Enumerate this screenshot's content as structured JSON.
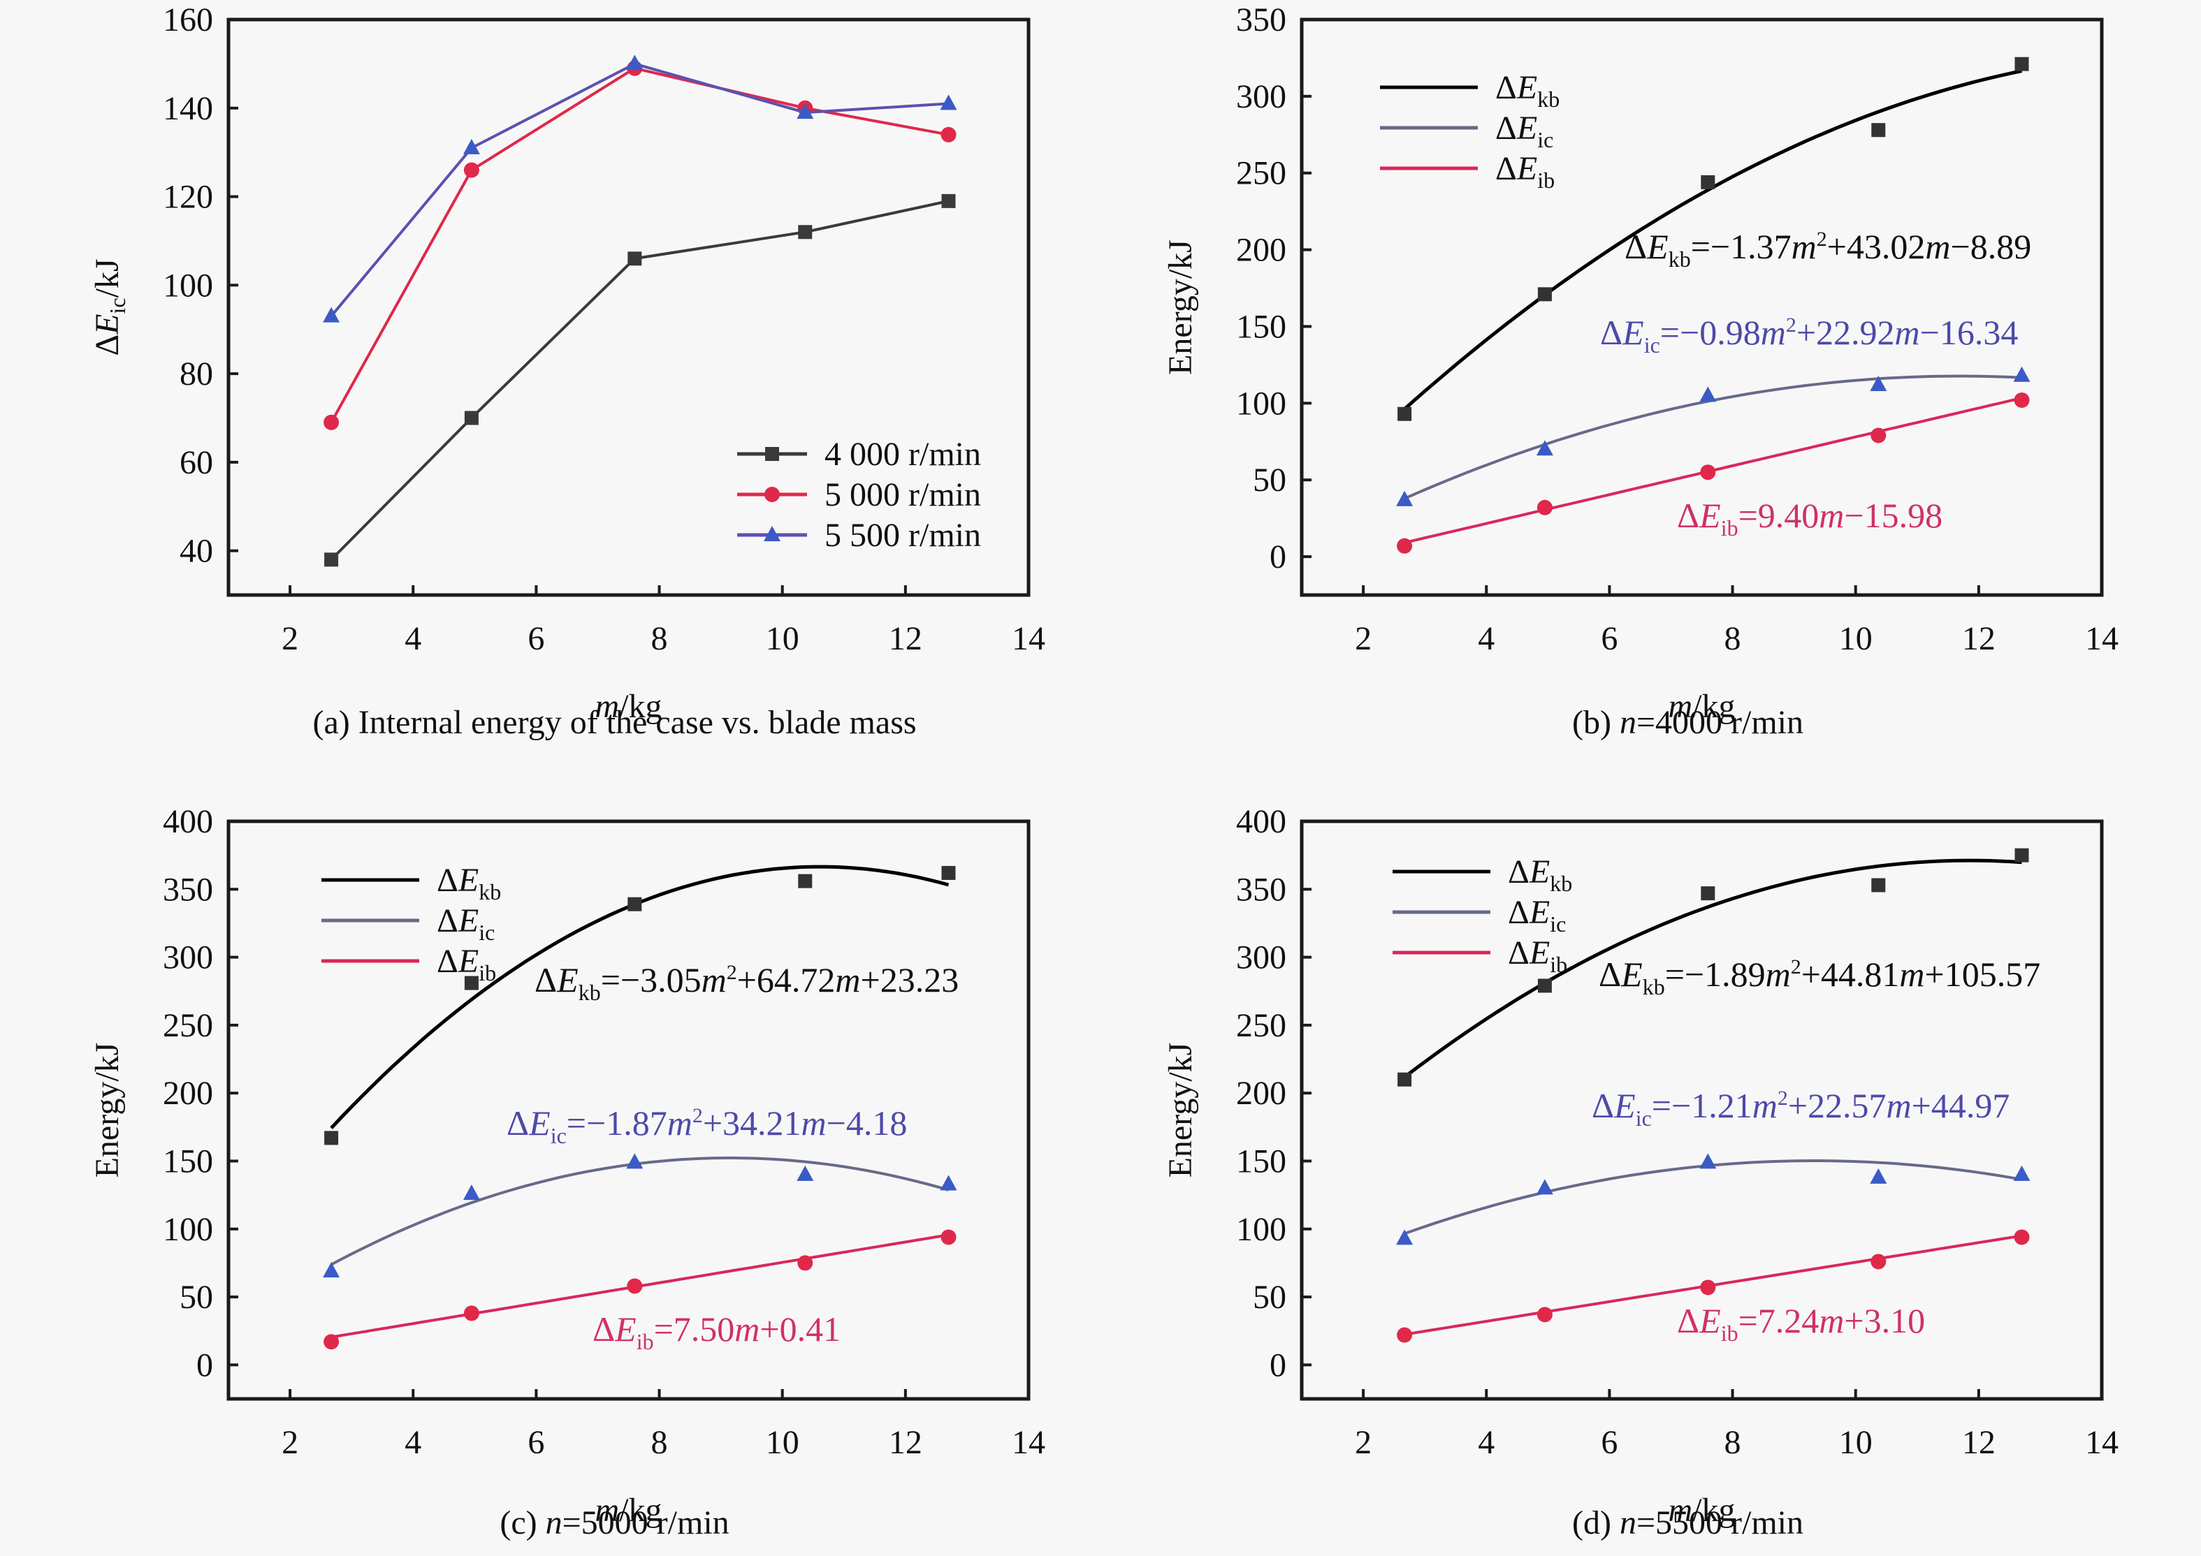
{
  "chart_data": [
    {
      "id": "a",
      "type": "line",
      "caption": "(a) Internal energy of the case vs. blade mass",
      "xlabel": "m/kg",
      "ylabel": "ΔEic/kJ",
      "xlim": [
        1,
        14
      ],
      "ylim": [
        30,
        160
      ],
      "xticks": [
        2,
        4,
        6,
        8,
        10,
        12,
        14
      ],
      "yticks": [
        40,
        60,
        80,
        100,
        120,
        140,
        160
      ],
      "legend_position": "bottom-right",
      "x": [
        2.67,
        4.95,
        7.6,
        10.37,
        12.7
      ],
      "series": [
        {
          "name": "4 000 r/min",
          "marker": "square",
          "color": "#3a3a3a",
          "values": [
            38,
            70,
            106,
            112,
            119
          ]
        },
        {
          "name": "5 000 r/min",
          "marker": "circle",
          "color": "#e0284a",
          "values": [
            69,
            126,
            149,
            140,
            134
          ]
        },
        {
          "name": "5 500 r/min",
          "marker": "triangle",
          "color": "#3a5bc7",
          "line_color": "#5a52b0",
          "values": [
            93,
            131,
            150,
            139,
            141
          ]
        }
      ]
    },
    {
      "id": "b",
      "type": "scatter",
      "caption": "(b) n=4000 r/min",
      "caption_parts": [
        "(b) ",
        "n",
        "=4000 r/min"
      ],
      "xlabel": "m/kg",
      "ylabel": "Energy/kJ",
      "xlim": [
        1,
        14
      ],
      "ylim": [
        -25,
        350
      ],
      "xticks": [
        2,
        4,
        6,
        8,
        10,
        12,
        14
      ],
      "yticks": [
        0,
        50,
        100,
        150,
        200,
        250,
        300,
        350
      ],
      "legend_position": "top-left",
      "x": [
        2.67,
        4.95,
        7.6,
        10.37,
        12.7
      ],
      "series": [
        {
          "name": "ΔEkb",
          "sub": "kb",
          "marker": "square",
          "color": "#333333",
          "line_color": "#000000",
          "values": [
            93,
            171,
            244,
            278,
            321
          ],
          "fit": [
            -1.37,
            43.02,
            -8.89
          ],
          "equation": [
            "=−1.37",
            "m",
            "2",
            "+43.02",
            "m",
            "−8.89"
          ],
          "eq_color": "#111111"
        },
        {
          "name": "ΔEic",
          "sub": "ic",
          "marker": "triangle",
          "color": "#3a5bc7",
          "line_color": "#666a8a",
          "values": [
            37,
            70,
            105,
            112,
            118
          ],
          "fit": [
            -0.98,
            22.92,
            -16.34
          ],
          "equation": [
            "=−0.98",
            "m",
            "2",
            "+22.92",
            "m",
            "−16.34"
          ],
          "eq_color": "#4d4aa8"
        },
        {
          "name": "ΔEib",
          "sub": "ib",
          "marker": "circle",
          "color": "#e0284a",
          "line_color": "#d8285a",
          "values": [
            7,
            32,
            55,
            79,
            102
          ],
          "fit": [
            0,
            9.4,
            -15.98
          ],
          "equation": [
            "=9.40",
            "m",
            "",
            "−15.98",
            "",
            ""
          ],
          "eq_color": "#d0306a"
        }
      ]
    },
    {
      "id": "c",
      "type": "scatter",
      "caption": "(c) n=5000 r/min",
      "caption_parts": [
        "(c) ",
        "n",
        "=5000 r/min"
      ],
      "xlabel": "m/kg",
      "ylabel": "Energy/kJ",
      "xlim": [
        1,
        14
      ],
      "ylim": [
        -25,
        400
      ],
      "xticks": [
        2,
        4,
        6,
        8,
        10,
        12,
        14
      ],
      "yticks": [
        0,
        50,
        100,
        150,
        200,
        250,
        300,
        350,
        400
      ],
      "legend_position": "top-left",
      "x": [
        2.67,
        4.95,
        7.6,
        10.37,
        12.7
      ],
      "series": [
        {
          "name": "ΔEkb",
          "sub": "kb",
          "marker": "square",
          "color": "#333333",
          "line_color": "#000000",
          "values": [
            167,
            281,
            339,
            356,
            362
          ],
          "fit": [
            -3.05,
            64.72,
            23.23
          ],
          "equation": [
            "=−3.05",
            "m",
            "2",
            "+64.72",
            "m",
            "+23.23"
          ],
          "eq_color": "#111111"
        },
        {
          "name": "ΔEic",
          "sub": "ic",
          "marker": "triangle",
          "color": "#3a5bc7",
          "line_color": "#666a8a",
          "values": [
            69,
            126,
            149,
            140,
            133
          ],
          "fit": [
            -1.87,
            34.21,
            -4.18
          ],
          "equation": [
            "=−1.87",
            "m",
            "2",
            "+34.21",
            "m",
            "−4.18"
          ],
          "eq_color": "#4d4aa8"
        },
        {
          "name": "ΔEib",
          "sub": "ib",
          "marker": "circle",
          "color": "#e0284a",
          "line_color": "#d8285a",
          "values": [
            17,
            38,
            58,
            75,
            94
          ],
          "fit": [
            0,
            7.5,
            0.41
          ],
          "equation": [
            "=7.50",
            "m",
            "",
            "+0.41",
            "",
            ""
          ],
          "eq_color": "#d0306a"
        }
      ]
    },
    {
      "id": "d",
      "type": "scatter",
      "caption": "(d) n=5500 r/min",
      "caption_parts": [
        "(d) ",
        "n",
        "=5500 r/min"
      ],
      "xlabel": "m/kg",
      "ylabel": "Energy/kJ",
      "xlim": [
        1,
        14
      ],
      "ylim": [
        -25,
        400
      ],
      "xticks": [
        2,
        4,
        6,
        8,
        10,
        12,
        14
      ],
      "yticks": [
        0,
        50,
        100,
        150,
        200,
        250,
        300,
        350,
        400
      ],
      "legend_position": "top-left",
      "x": [
        2.67,
        4.95,
        7.6,
        10.37,
        12.7
      ],
      "series": [
        {
          "name": "ΔEkb",
          "sub": "kb",
          "marker": "square",
          "color": "#333333",
          "line_color": "#000000",
          "values": [
            210,
            279,
            347,
            353,
            375
          ],
          "fit": [
            -1.89,
            44.81,
            105.57
          ],
          "equation": [
            "=−1.89",
            "m",
            "2",
            "+44.81",
            "m",
            "+105.57"
          ],
          "eq_color": "#111111"
        },
        {
          "name": "ΔEic",
          "sub": "ic",
          "marker": "triangle",
          "color": "#3a5bc7",
          "line_color": "#666a8a",
          "values": [
            93,
            130,
            149,
            138,
            140
          ],
          "fit": [
            -1.21,
            22.57,
            44.97
          ],
          "equation": [
            "=−1.21",
            "m",
            "2",
            "+22.57",
            "m",
            "+44.97"
          ],
          "eq_color": "#4d4aa8"
        },
        {
          "name": "ΔEib",
          "sub": "ib",
          "marker": "circle",
          "color": "#e0284a",
          "line_color": "#d8285a",
          "values": [
            22,
            37,
            57,
            76,
            94
          ],
          "fit": [
            0,
            7.24,
            3.1
          ],
          "equation": [
            "=7.24",
            "m",
            "",
            "+3.10",
            "",
            ""
          ],
          "eq_color": "#d0306a"
        }
      ]
    }
  ]
}
